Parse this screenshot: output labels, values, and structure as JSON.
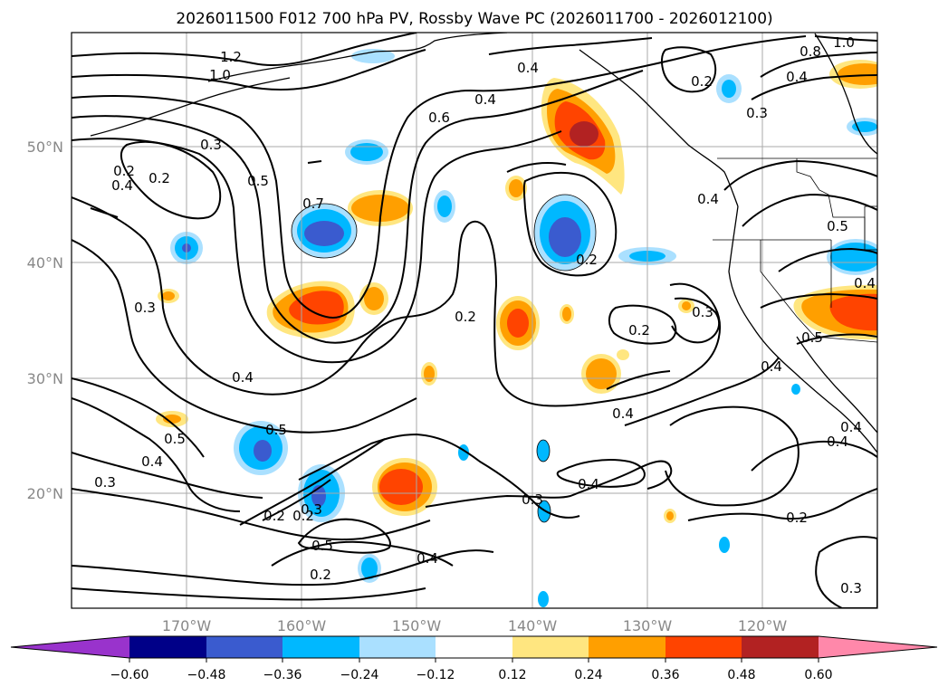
{
  "title": "2026011500 F012 700 hPa PV, Rossby Wave PC (2026011700 - 2026012100)",
  "lat_labels": [
    "50°N",
    "40°N",
    "30°N",
    "20°N"
  ],
  "lon_labels": [
    "170°W",
    "160°W",
    "150°W",
    "140°W",
    "130°W",
    "120°W"
  ],
  "colorbar": {
    "tick_labels": [
      "−0.60",
      "−0.48",
      "−0.36",
      "−0.24",
      "−0.12",
      "0.12",
      "0.24",
      "0.36",
      "0.48",
      "0.60"
    ],
    "colors": [
      "#9933cc",
      "#000088",
      "#3a5bcf",
      "#00b8ff",
      "#aae0ff",
      "#ffffff",
      "#ffe680",
      "#ff9f00",
      "#ff4400",
      "#b22222",
      "#ff88aa"
    ]
  },
  "contour_labels": [
    "1.2",
    "1.0",
    "0.4",
    "0.6",
    "0.4",
    "0.3",
    "0.2",
    "0.4",
    "0.2",
    "0.3",
    "0.5",
    "0.7",
    "0.2",
    "0.2",
    "0.2",
    "0.5",
    "0.4",
    "0.3",
    "0.4",
    "0.5",
    "0.2",
    "0.4",
    "0.3",
    "0.2",
    "0.3",
    "0.5",
    "0.4",
    "0.4",
    "0.3",
    "0.2",
    "0.4",
    "0.3",
    "1.0",
    "0.8",
    "0.4",
    "0.2",
    "0.3",
    "0.4",
    "0.5",
    "0.4",
    "0.5",
    "0.4",
    "0.4",
    "0.2"
  ]
}
